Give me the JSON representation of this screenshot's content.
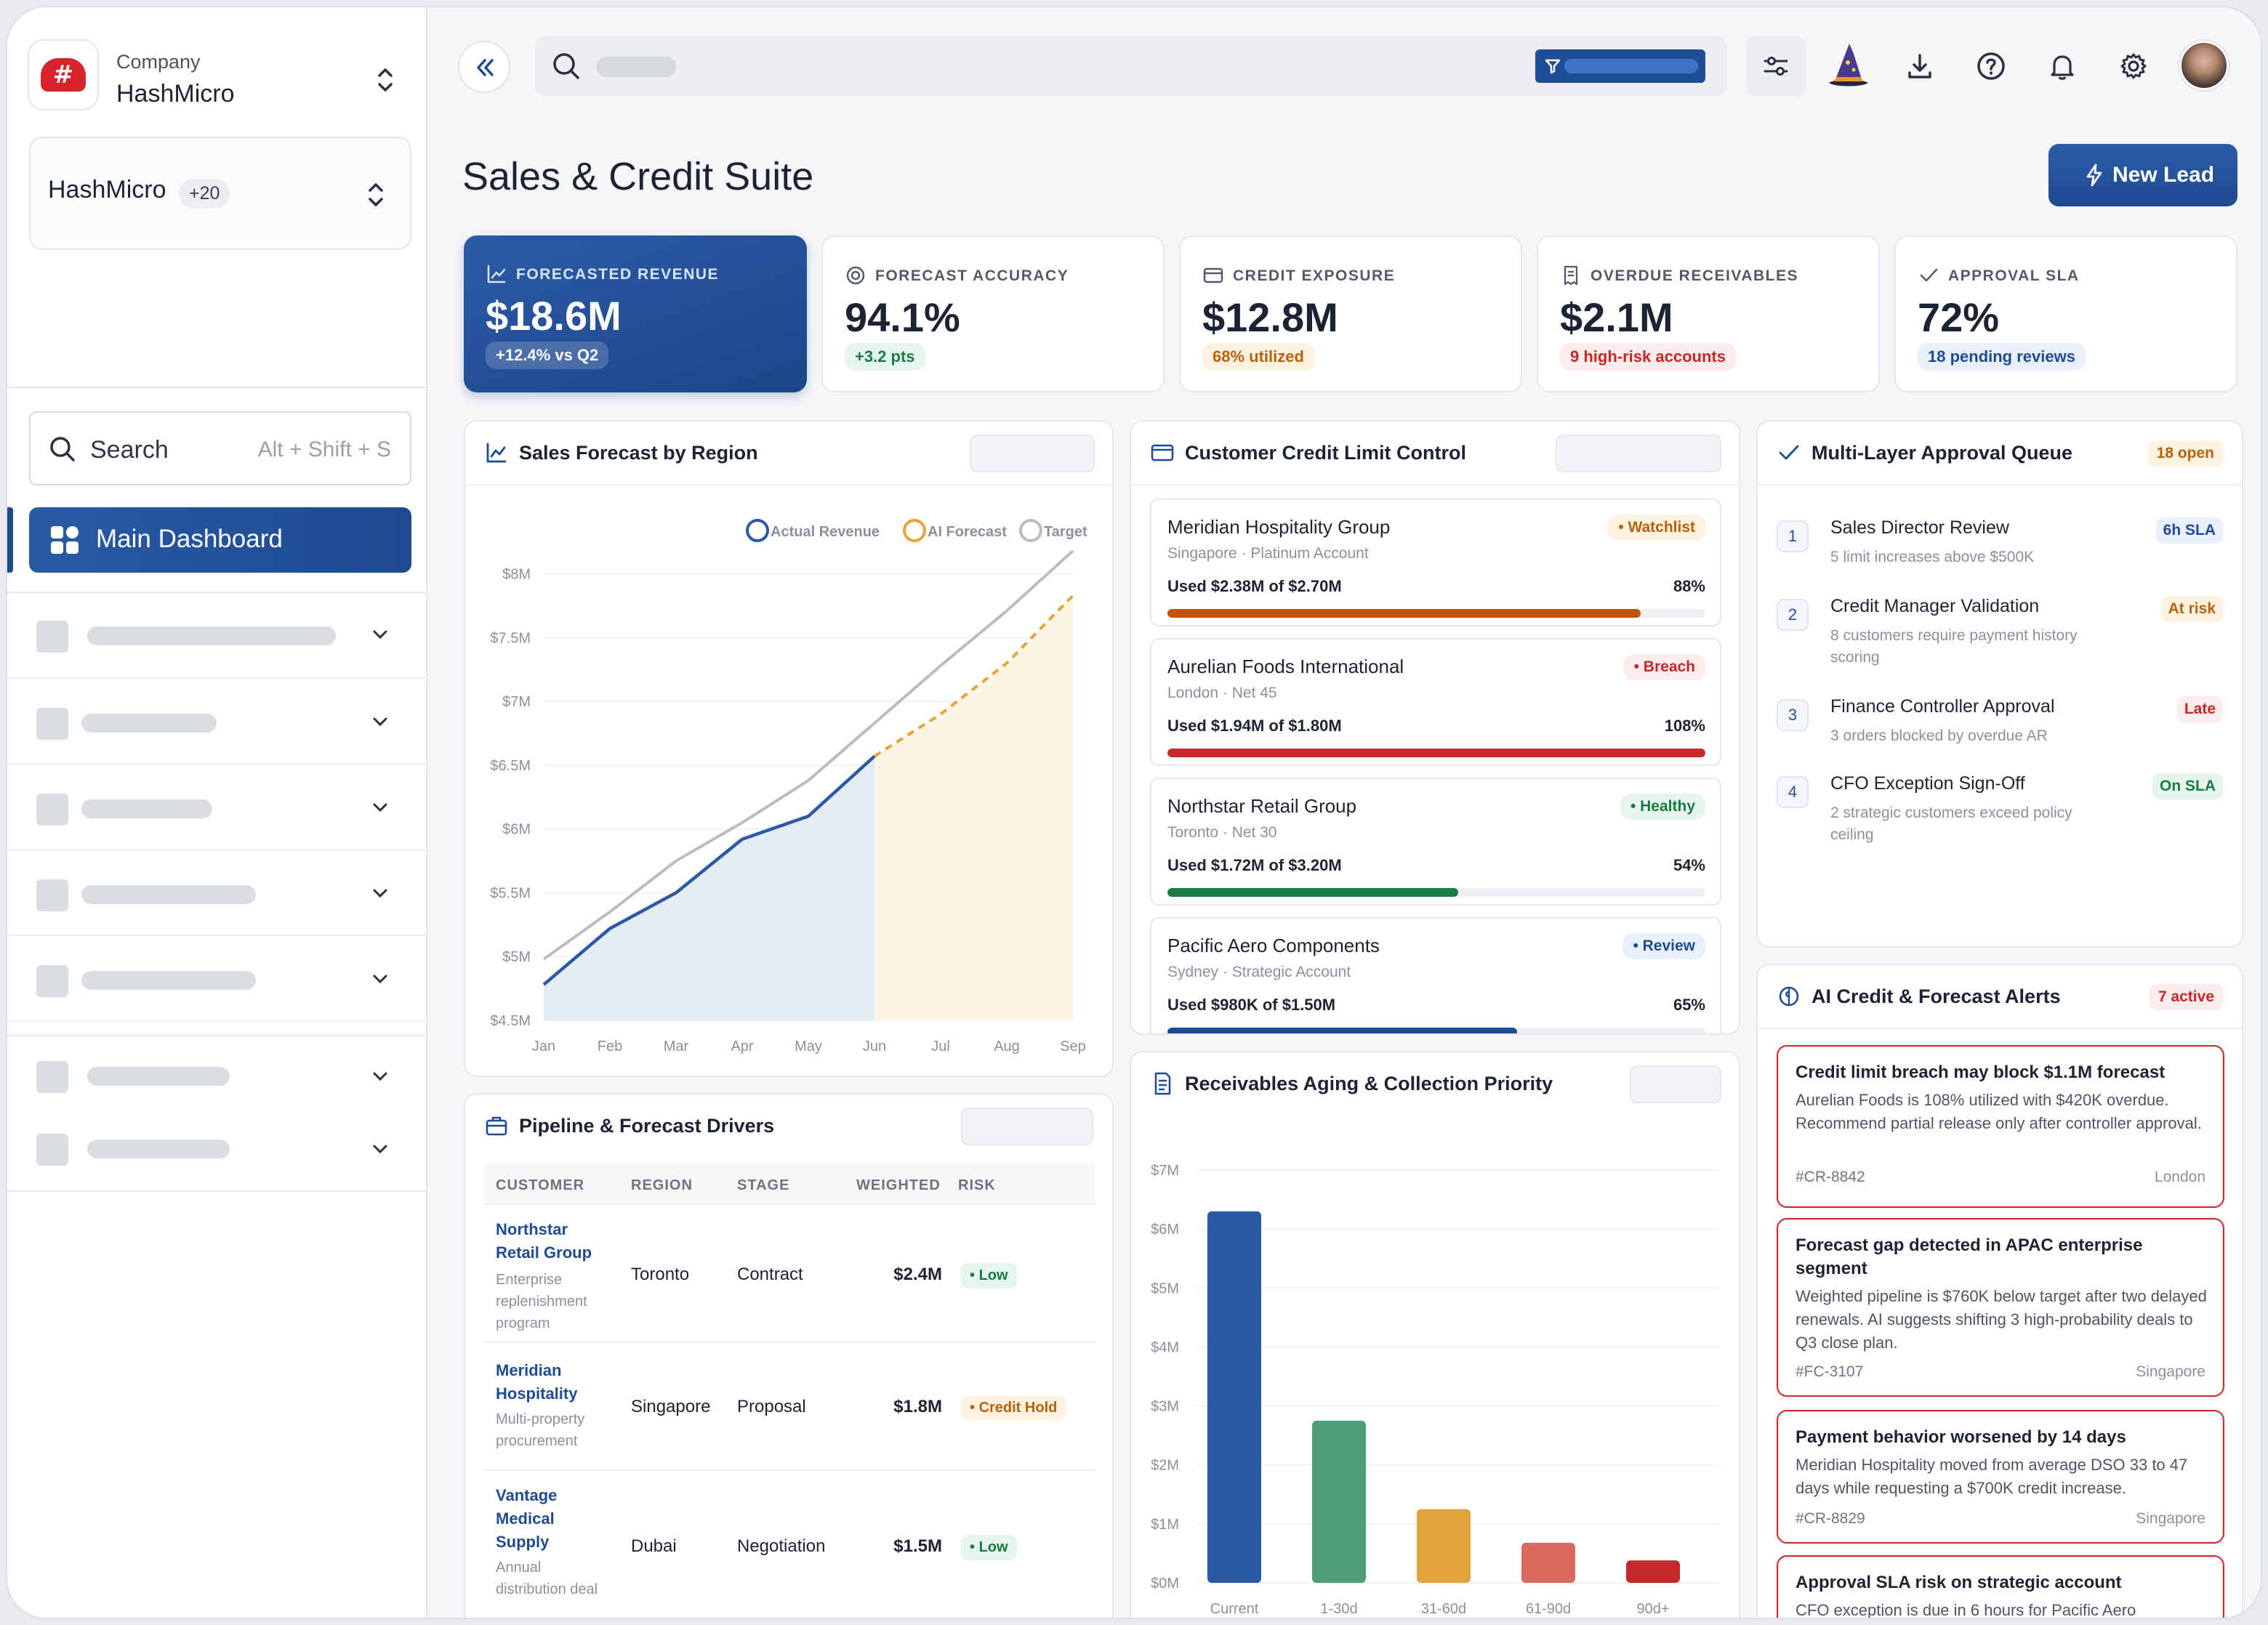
{
  "company": {
    "label": "Company",
    "name": "HashMicro",
    "logo_text": "#"
  },
  "workspace": {
    "name": "HashMicro",
    "badge": "+20"
  },
  "search": {
    "label": "Search",
    "shortcut": "Alt + Shift + S"
  },
  "nav": {
    "active": "Main Dashboard"
  },
  "page": {
    "title": "Sales & Credit Suite",
    "new_lead": "New Lead"
  },
  "kpis": [
    {
      "label": "FORECASTED REVENUE",
      "value": "$18.6M",
      "pill": "+12.4% vs Q2"
    },
    {
      "label": "FORECAST ACCURACY",
      "value": "94.1%",
      "pill": "+3.2 pts"
    },
    {
      "label": "CREDIT EXPOSURE",
      "value": "$12.8M",
      "pill": "68% utilized"
    },
    {
      "label": "OVERDUE RECEIVABLES",
      "value": "$2.1M",
      "pill": "9 high-risk accounts"
    },
    {
      "label": "APPROVAL SLA",
      "value": "72%",
      "pill": "18 pending reviews"
    }
  ],
  "colors": {
    "brand": "#1d4a91",
    "danger": "#d02b2b",
    "warning": "#c0540c",
    "success": "#1a7a45",
    "forecast": "#e8a33a"
  },
  "forecast_card": {
    "title": "Sales Forecast by Region"
  },
  "chart_data": [
    {
      "type": "line",
      "x": [
        "Jan",
        "Feb",
        "Mar",
        "Apr",
        "May",
        "Jun",
        "Jul",
        "Aug",
        "Sep"
      ],
      "y_ticks": [
        "$4.5M",
        "$5M",
        "$5.5M",
        "$6M",
        "$6.5M",
        "$7M",
        "$7.5M",
        "$8M"
      ],
      "ylim": [
        4.5,
        8.1
      ],
      "series": [
        {
          "name": "Actual Revenue",
          "values": [
            4.78,
            5.22,
            5.5,
            5.92,
            6.1,
            6.57,
            null,
            null,
            null
          ],
          "color": "#2a5aa6"
        },
        {
          "name": "AI Forecast",
          "values": [
            null,
            null,
            null,
            null,
            null,
            6.57,
            6.9,
            7.3,
            7.83
          ],
          "color": "#e8a33a"
        },
        {
          "name": "Target",
          "values": [
            4.98,
            5.35,
            5.75,
            6.05,
            6.38,
            6.83,
            7.28,
            7.71,
            8.18
          ],
          "color": "#b8bcc6"
        }
      ]
    },
    {
      "type": "bar",
      "categories": [
        "Current",
        "1-30d",
        "31-60d",
        "61-90d",
        "90d+"
      ],
      "values": [
        6.3,
        2.75,
        1.25,
        0.68,
        0.38
      ],
      "colors": [
        "#2a5aa6",
        "#4e9e7a",
        "#e1a43c",
        "#d9695e",
        "#c52a2a"
      ],
      "y_ticks": [
        "$0M",
        "$1M",
        "$2M",
        "$3M",
        "$4M",
        "$5M",
        "$6M",
        "$7M"
      ],
      "ylim": [
        0,
        7
      ]
    }
  ],
  "credit_card": {
    "title": "Customer Credit Limit Control",
    "items": [
      {
        "name": "Meridian Hospitality Group",
        "sub": "Singapore · Platinum Account",
        "used": "Used $2.38M of $2.70M",
        "pct": "88%",
        "fill": 0.88,
        "tag": "Watchlist",
        "tone": "warn"
      },
      {
        "name": "Aurelian Foods International",
        "sub": "London · Net 45",
        "used": "Used $1.94M of $1.80M",
        "pct": "108%",
        "fill": 1.0,
        "tag": "Breach",
        "tone": "bad"
      },
      {
        "name": "Northstar Retail Group",
        "sub": "Toronto · Net 30",
        "used": "Used $1.72M of $3.20M",
        "pct": "54%",
        "fill": 0.54,
        "tag": "Healthy",
        "tone": "good"
      },
      {
        "name": "Pacific Aero Components",
        "sub": "Sydney · Strategic Account",
        "used": "Used $980K of $1.50M",
        "pct": "65%",
        "fill": 0.65,
        "tag": "Review",
        "tone": "info"
      }
    ]
  },
  "approval": {
    "title": "Multi-Layer Approval Queue",
    "count": "18 open",
    "items": [
      {
        "n": "1",
        "title": "Sales Director Review",
        "desc": "5 limit increases above $500K",
        "tag": "6h SLA",
        "tone": "info"
      },
      {
        "n": "2",
        "title": "Credit Manager Validation",
        "desc": "8 customers require payment history scoring",
        "tag": "At risk",
        "tone": "warn"
      },
      {
        "n": "3",
        "title": "Finance Controller Approval",
        "desc": "3 orders blocked by overdue AR",
        "tag": "Late",
        "tone": "bad"
      },
      {
        "n": "4",
        "title": "CFO Exception Sign-Off",
        "desc": "2 strategic customers exceed policy ceiling",
        "tag": "On SLA",
        "tone": "good"
      }
    ]
  },
  "alerts": {
    "title": "AI Credit & Forecast Alerts",
    "count": "7 active",
    "items": [
      {
        "title": "Credit limit breach may block $1.1M forecast",
        "desc": "Aurelian Foods is 108% utilized with $420K overdue. Recommend partial release only after controller approval.",
        "id": "#CR-8842",
        "loc": "London"
      },
      {
        "title": "Forecast gap detected in APAC enterprise segment",
        "desc": "Weighted pipeline is $760K below target after two delayed renewals. AI suggests shifting 3 high-probability deals to Q3 close plan.",
        "id": "#FC-3107",
        "loc": "Singapore"
      },
      {
        "title": "Payment behavior worsened by 14 days",
        "desc": "Meridian Hospitality moved from average DSO 33 to 47 days while requesting a $700K credit increase.",
        "id": "#CR-8829",
        "loc": "Singapore"
      },
      {
        "title": "Approval SLA risk on strategic account",
        "desc": "CFO exception is due in 6 hours for Pacific Aero",
        "id": "",
        "loc": ""
      }
    ]
  },
  "pipeline": {
    "title": "Pipeline & Forecast Drivers",
    "headers": [
      "CUSTOMER",
      "REGION",
      "STAGE",
      "WEIGHTED",
      "RISK"
    ],
    "rows": [
      {
        "name": "Northstar Retail Group",
        "desc": "Enterprise replenishment program",
        "region": "Toronto",
        "stage": "Contract",
        "weighted": "$2.4M",
        "risk": "Low",
        "tone": "good"
      },
      {
        "name": "Meridian Hospitality",
        "desc": "Multi-property procurement",
        "region": "Singapore",
        "stage": "Proposal",
        "weighted": "$1.8M",
        "risk": "Credit Hold",
        "tone": "warn"
      },
      {
        "name": "Vantage Medical Supply",
        "desc": "Annual distribution deal",
        "region": "Dubai",
        "stage": "Negotiation",
        "weighted": "$1.5M",
        "risk": "Low",
        "tone": "good"
      }
    ]
  },
  "receivables": {
    "title": "Receivables Aging & Collection Priority"
  }
}
